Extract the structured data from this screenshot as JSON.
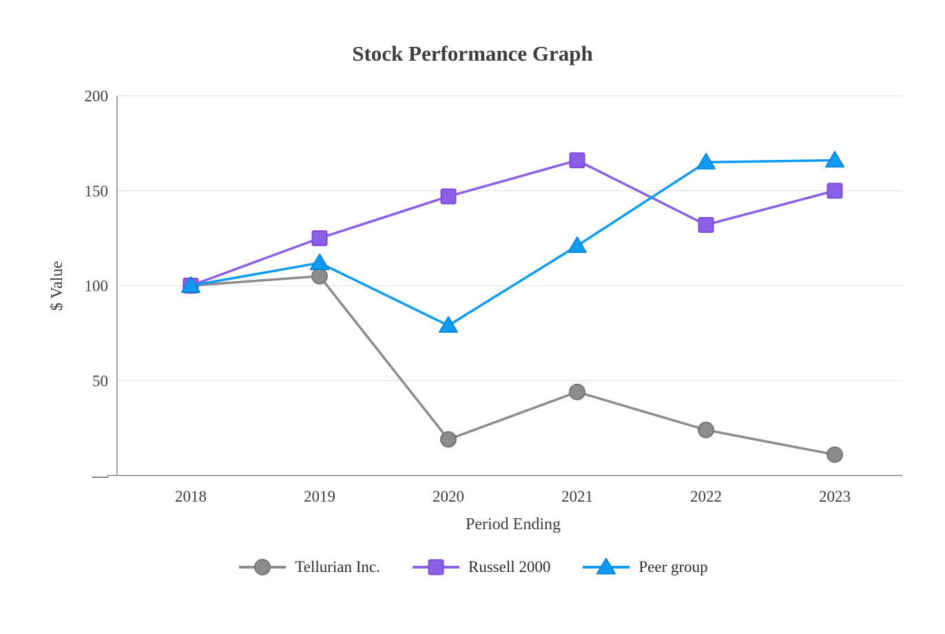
{
  "chart_data": {
    "type": "line",
    "title": "Stock Performance Graph",
    "xlabel": "Period Ending",
    "ylabel": "$ Value",
    "x": [
      "2018",
      "2019",
      "2020",
      "2021",
      "2022",
      "2023"
    ],
    "ylim": [
      0,
      200
    ],
    "yticks": [
      {
        "value": 200,
        "label": "200"
      },
      {
        "value": 150,
        "label": "150"
      },
      {
        "value": 100,
        "label": "100"
      },
      {
        "value": 50,
        "label": "50"
      },
      {
        "value": 0,
        "label": "—"
      }
    ],
    "grid": "horizontal",
    "legend_position": "bottom",
    "series": [
      {
        "name": "Tellurian Inc.",
        "marker": "circle",
        "color": "#8C8C8C",
        "stroke": "#757575",
        "values": [
          100,
          105,
          19,
          44,
          24,
          11
        ]
      },
      {
        "name": "Russell 2000",
        "marker": "square",
        "color": "#8B5FE6",
        "stroke": "#7A4BD6",
        "values": [
          100,
          125,
          147,
          166,
          132,
          150
        ]
      },
      {
        "name": "Peer group",
        "marker": "triangle",
        "color": "#0F9BF2",
        "stroke": "#0C86D6",
        "values": [
          100,
          112,
          79,
          121,
          165,
          166
        ]
      }
    ]
  }
}
